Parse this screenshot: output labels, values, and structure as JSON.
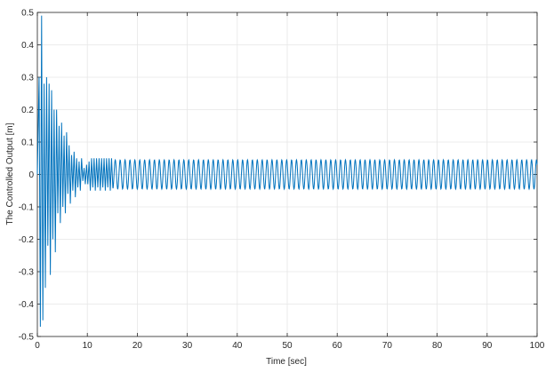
{
  "chart_data": {
    "type": "line",
    "xlabel": "Time [sec]",
    "ylabel": "The Controlled Output [m]",
    "xlim": [
      0,
      100
    ],
    "ylim": [
      -0.5,
      0.5
    ],
    "x_ticks": [
      0,
      10,
      20,
      30,
      40,
      50,
      60,
      70,
      80,
      90,
      100
    ],
    "y_ticks": [
      -0.5,
      -0.4,
      -0.3,
      -0.2,
      -0.1,
      0,
      0.1,
      0.2,
      0.3,
      0.4,
      0.5
    ],
    "x_tick_labels": [
      "0",
      "10",
      "20",
      "30",
      "40",
      "50",
      "60",
      "70",
      "80",
      "90",
      "100"
    ],
    "y_tick_labels": [
      "-0.5",
      "-0.4",
      "-0.3",
      "-0.2",
      "-0.1",
      "0",
      "0.1",
      "0.2",
      "0.3",
      "0.4",
      "0.5"
    ],
    "grid": true,
    "line_color": "#0072BD",
    "series": [
      {
        "x": [
          0,
          0.35,
          0.6,
          0.85,
          1.1,
          1.35,
          1.6,
          1.85,
          2.1,
          2.35,
          2.6,
          2.85,
          3.1,
          3.35,
          3.6,
          3.85,
          4.1,
          4.35,
          4.6,
          4.85,
          5.1,
          5.35,
          5.6,
          5.85,
          6.1,
          6.35,
          6.6,
          6.85,
          7.1,
          7.35,
          7.6,
          7.85,
          8.1,
          8.35,
          8.6,
          8.85,
          9.1,
          9.35,
          9.6,
          9.85,
          10.1,
          10.35,
          10.6,
          10.85,
          11.1,
          11.35,
          11.6,
          11.85,
          12.1,
          12.35,
          12.6,
          12.85,
          13.1,
          13.35,
          13.6,
          13.85,
          14.1,
          14.35,
          14.6,
          14.85,
          15.1
        ],
        "values": [
          0,
          0.3,
          -0.47,
          0.49,
          -0.45,
          0.28,
          -0.35,
          0.3,
          -0.22,
          0.28,
          -0.31,
          0.26,
          -0.2,
          0.2,
          -0.24,
          0.2,
          -0.12,
          0.15,
          -0.15,
          0.16,
          -0.1,
          0.12,
          -0.12,
          0.13,
          -0.06,
          0.09,
          -0.09,
          0.06,
          -0.05,
          0.07,
          -0.07,
          0.05,
          -0.04,
          0.04,
          -0.05,
          0.05,
          -0.02,
          0.02,
          -0.03,
          0.03,
          -0.03,
          0.04,
          -0.05,
          0.05,
          -0.04,
          0.05,
          -0.05,
          0.05,
          -0.04,
          0.05,
          -0.05,
          0.05,
          -0.04,
          0.05,
          -0.05,
          0.05,
          -0.04,
          0.05,
          -0.05,
          0.05,
          -0.04
        ]
      }
    ],
    "steady_state": {
      "from_time": 15,
      "to_time": 100,
      "amplitude": 0.045,
      "period": 0.98
    }
  }
}
